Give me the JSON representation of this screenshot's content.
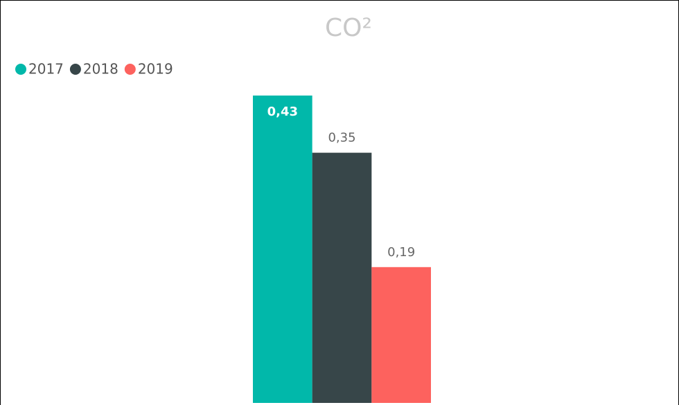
{
  "chart_data": {
    "type": "bar",
    "title": "CO²",
    "categories": [
      null
    ],
    "series": [
      {
        "name": "2017",
        "color": "#01B8AA",
        "values": [
          0.43
        ],
        "value_labels": [
          "0,43"
        ]
      },
      {
        "name": "2018",
        "color": "#374649",
        "values": [
          0.35
        ],
        "value_labels": [
          "0,35"
        ]
      },
      {
        "name": "2019",
        "color": "#FD625E",
        "values": [
          0.19
        ],
        "value_labels": [
          "0,19"
        ]
      }
    ],
    "legend": "top-left"
  }
}
